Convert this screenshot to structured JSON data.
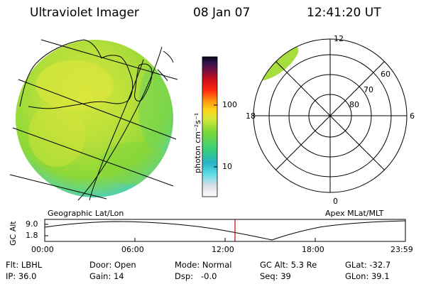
{
  "header": {
    "instrument": "Ultraviolet Imager",
    "date": "08 Jan 07",
    "time": "12:41:20 UT"
  },
  "colorbar": {
    "unit_label": "photon cm⁻²s⁻¹",
    "ticks": [
      "100",
      "10"
    ],
    "scale": "log"
  },
  "geo_panel": {
    "label": "Geographic Lat/Lon"
  },
  "polar_panel": {
    "label": "Apex MLat/MLT",
    "mlt_labels": {
      "top": "12",
      "left": "18",
      "right": "6",
      "bottom": "0"
    },
    "mlat_labels": [
      "60",
      "70",
      "80"
    ]
  },
  "altitude_strip": {
    "ylabel": "GC Alt",
    "yticks": [
      "9.0",
      "1.8"
    ],
    "xticks": [
      "00:00",
      "06:00",
      "12:00",
      "18:00",
      "23:59"
    ],
    "current_time_marker": "12:41"
  },
  "footer": {
    "flt": "Flt: LBHL",
    "ip": "IP: 36.0",
    "door": "Door: Open",
    "gain": "Gain: 14",
    "mode": "Mode: Normal",
    "dsp": "Dsp:   -0.0",
    "gc_alt": "GC Alt: 5.3 Re",
    "seq": "Seq: 39",
    "glat": "GLat: -32.7",
    "glon": "GLon: 39.1"
  },
  "colors": {
    "disk_base": "#8fd936",
    "disk_bright": "#d6e63a",
    "disk_edge": "#5ed3a0",
    "marker": "#b00000"
  }
}
